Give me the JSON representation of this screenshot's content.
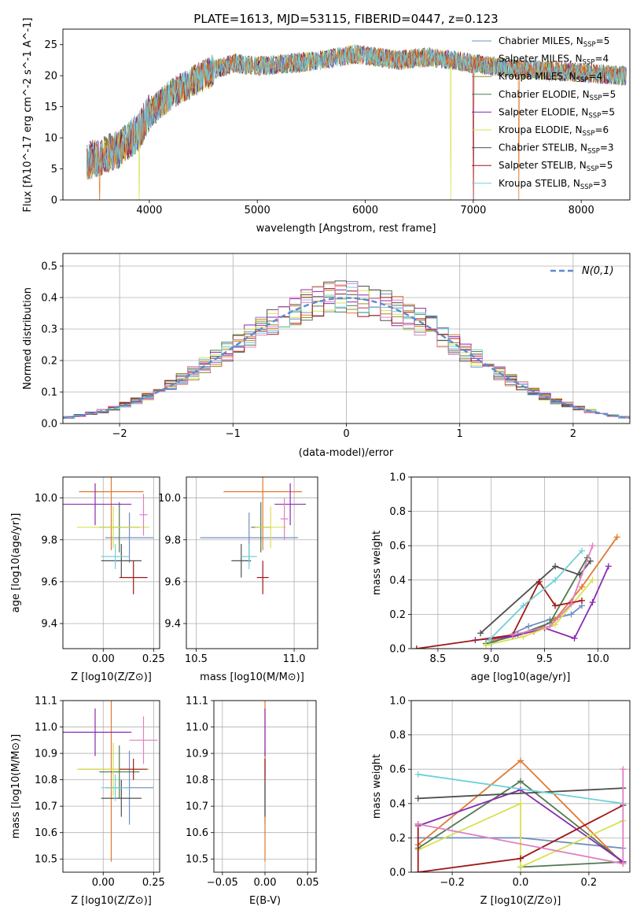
{
  "figure": {
    "title": "PLATE=1613, MJD=53115, FIBERID=0447, z=0.123"
  },
  "colors": {
    "series": [
      "#6f8fc0",
      "#e07a30",
      "#9a8a2a",
      "#4f7a4f",
      "#8a2ab0",
      "#d8e050",
      "#505050",
      "#a01818",
      "#70d0d8"
    ],
    "pink": "#e080c0",
    "lightgreen": "#90d070",
    "grid": "#b0b0b0",
    "gaussian": "#5b8bd0"
  },
  "chart_data": [
    {
      "id": "spectrum",
      "type": "line",
      "title": "PLATE=1613, MJD=53115, FIBERID=0447, z=0.123",
      "xlabel": "wavelength [Angstrom, rest frame]",
      "ylabel": "Flux [fλ10^-17 erg cm^-2 s^-1 A^-1]",
      "xlim": [
        3200,
        8450
      ],
      "ylim": [
        0,
        27.5
      ],
      "xticks": [
        4000,
        5000,
        6000,
        7000,
        8000
      ],
      "yticks": [
        0,
        5,
        10,
        15,
        20,
        25
      ],
      "grid": false,
      "legend_position": "right",
      "series": [
        {
          "name": "Chabrier MILES, N_SSP=5",
          "label_main": "Chabrier MILES, N",
          "label_sub": "SSP",
          "label_tail": "=5"
        },
        {
          "name": "Salpeter MILES, N_SSP=4",
          "label_main": "Salpeter MILES, N",
          "label_sub": "SSP",
          "label_tail": "=4"
        },
        {
          "name": "Kroupa MILES, N_SSP=4",
          "label_main": "Kroupa MILES, N",
          "label_sub": "SSP",
          "label_tail": "=4"
        },
        {
          "name": "Chabrier ELODIE, N_SSP=5",
          "label_main": "Chabrier ELODIE, N",
          "label_sub": "SSP",
          "label_tail": "=5"
        },
        {
          "name": "Salpeter ELODIE, N_SSP=5",
          "label_main": "Salpeter ELODIE, N",
          "label_sub": "SSP",
          "label_tail": "=5"
        },
        {
          "name": "Kroupa ELODIE, N_SSP=6",
          "label_main": "Kroupa ELODIE, N",
          "label_sub": "SSP",
          "label_tail": "=6"
        },
        {
          "name": "Chabrier STELIB, N_SSP=3",
          "label_main": "Chabrier STELIB, N",
          "label_sub": "SSP",
          "label_tail": "=3"
        },
        {
          "name": "Salpeter STELIB, N_SSP=5",
          "label_main": "Salpeter STELIB, N",
          "label_sub": "SSP",
          "label_tail": "=5"
        },
        {
          "name": "Kroupa STELIB, N_SSP=3",
          "label_main": "Kroupa STELIB, N",
          "label_sub": "SSP",
          "label_tail": "=3"
        }
      ],
      "continuum": {
        "x": [
          3400,
          3550,
          3700,
          3900,
          4000,
          4200,
          4300,
          4400,
          4600,
          4800,
          5000,
          5300,
          5600,
          5900,
          6100,
          6300,
          6600,
          6800,
          7000,
          7200,
          7500,
          8000,
          8400
        ],
        "y": [
          6,
          7,
          8,
          11,
          14,
          17,
          18,
          19,
          21,
          22,
          21.5,
          22,
          22.5,
          23.5,
          23,
          22.5,
          23,
          22.5,
          22,
          21.5,
          21,
          20.5,
          20
        ]
      }
    },
    {
      "id": "residual_hist",
      "type": "histogram",
      "xlabel": "(data-model)/error",
      "ylabel": "Normed distribution",
      "xlim": [
        -2.5,
        2.5
      ],
      "ylim": [
        0,
        0.54
      ],
      "xticks": [
        -2,
        -1,
        0,
        1,
        2
      ],
      "yticks": [
        0.0,
        0.1,
        0.2,
        0.3,
        0.4,
        0.5
      ],
      "grid": true,
      "legend_position": "top-right",
      "legend": "N(0,1)",
      "bin_width": 0.1
    },
    {
      "id": "age_vs_Z",
      "type": "scatter",
      "xlabel": "Z [log10(Z/Z⊙)]",
      "ylabel": "age [log10(age/yr)]",
      "xlim": [
        -0.2,
        0.28
      ],
      "ylim": [
        9.28,
        10.1
      ],
      "xticks": [
        0.0,
        0.25
      ],
      "yticks": [
        9.4,
        9.6,
        9.8,
        10.0
      ],
      "grid": true,
      "points": [
        {
          "series": 0,
          "x": 0.13,
          "y": 9.81,
          "xerr": 0.12,
          "yerr": 0.12
        },
        {
          "series": 1,
          "x": 0.04,
          "y": 10.03,
          "xerr": 0.16,
          "yerr": 0.28
        },
        {
          "series": 3,
          "x": 0.08,
          "y": 9.86,
          "xerr": 0.1,
          "yerr": 0.12
        },
        {
          "series": 4,
          "x": -0.04,
          "y": 9.97,
          "xerr": 0.18,
          "yerr": 0.1
        },
        {
          "series": 5,
          "x": 0.05,
          "y": 9.86,
          "xerr": 0.18,
          "yerr": 0.1
        },
        {
          "series": 6,
          "x": 0.09,
          "y": 9.7,
          "xerr": 0.1,
          "yerr": 0.08
        },
        {
          "series": 7,
          "x": 0.15,
          "y": 9.62,
          "xerr": 0.07,
          "yerr": 0.08
        },
        {
          "series": 8,
          "x": 0.06,
          "y": 9.72,
          "xerr": 0.07,
          "yerr": 0.06
        },
        {
          "color": "pink",
          "x": 0.2,
          "y": 9.92,
          "xerr": 0.02,
          "yerr": 0.1
        }
      ]
    },
    {
      "id": "age_vs_mass",
      "type": "scatter",
      "xlabel": "mass [log10(M/M⊙)]",
      "ylabel": "",
      "xlim": [
        10.45,
        11.12
      ],
      "ylim": [
        9.28,
        10.1
      ],
      "xticks": [
        10.5,
        11.0
      ],
      "yticks": [
        9.4,
        9.6,
        9.8,
        10.0
      ],
      "grid": true,
      "points": [
        {
          "series": 0,
          "x": 10.77,
          "y": 9.81,
          "xerr": 0.25,
          "yerr": 0.12
        },
        {
          "series": 1,
          "x": 10.84,
          "y": 10.03,
          "xerr": 0.2,
          "yerr": 0.28
        },
        {
          "series": 3,
          "x": 10.83,
          "y": 9.86,
          "xerr": 0.05,
          "yerr": 0.12
        },
        {
          "series": 4,
          "x": 10.98,
          "y": 9.97,
          "xerr": 0.08,
          "yerr": 0.1
        },
        {
          "series": 5,
          "x": 10.88,
          "y": 9.86,
          "xerr": 0.08,
          "yerr": 0.1
        },
        {
          "series": 6,
          "x": 10.73,
          "y": 9.7,
          "xerr": 0.05,
          "yerr": 0.08
        },
        {
          "series": 7,
          "x": 10.84,
          "y": 9.62,
          "xerr": 0.03,
          "yerr": 0.08
        },
        {
          "series": 8,
          "x": 10.77,
          "y": 9.72,
          "xerr": 0.04,
          "yerr": 0.06
        },
        {
          "color": "pink",
          "x": 10.95,
          "y": 9.9,
          "xerr": 0.02,
          "yerr": 0.1
        }
      ]
    },
    {
      "id": "weight_vs_age",
      "type": "line",
      "xlabel": "age [log10(age/yr)]",
      "ylabel": "mass weight",
      "xlim": [
        8.25,
        10.3
      ],
      "ylim": [
        0,
        1
      ],
      "xticks": [
        8.5,
        9.0,
        9.5,
        10.0
      ],
      "yticks": [
        0.0,
        0.2,
        0.4,
        0.6,
        0.8,
        1.0
      ],
      "grid": true,
      "series": [
        {
          "color_index": 0,
          "x": [
            9.0,
            9.35,
            9.55,
            9.75,
            9.85
          ],
          "y": [
            0.03,
            0.13,
            0.17,
            0.2,
            0.25
          ]
        },
        {
          "color_index": 1,
          "x": [
            9.0,
            9.4,
            9.6,
            9.85,
            10.18
          ],
          "y": [
            0.05,
            0.1,
            0.17,
            0.36,
            0.65
          ]
        },
        {
          "color_index": 3,
          "x": [
            8.95,
            9.25,
            9.55,
            9.9
          ],
          "y": [
            0.03,
            0.08,
            0.15,
            0.53
          ]
        },
        {
          "color_index": 4,
          "x": [
            8.85,
            9.2,
            9.5,
            9.78,
            9.95,
            10.1
          ],
          "y": [
            0.05,
            0.07,
            0.12,
            0.06,
            0.27,
            0.48
          ]
        },
        {
          "color_index": 5,
          "x": [
            8.95,
            9.3,
            9.6,
            9.95
          ],
          "y": [
            0.02,
            0.07,
            0.14,
            0.4
          ]
        },
        {
          "color_index": 6,
          "x": [
            8.9,
            9.6,
            9.83,
            9.93
          ],
          "y": [
            0.09,
            0.48,
            0.43,
            0.51
          ]
        },
        {
          "color_index": 7,
          "x": [
            8.3,
            9.2,
            9.45,
            9.6,
            9.85
          ],
          "y": [
            0.0,
            0.08,
            0.39,
            0.25,
            0.28
          ]
        },
        {
          "color_index": 8,
          "x": [
            8.98,
            9.3,
            9.6,
            9.85
          ],
          "y": [
            0.05,
            0.25,
            0.4,
            0.57
          ]
        },
        {
          "color": "pink",
          "x": [
            9.2,
            9.55,
            9.75,
            9.95
          ],
          "y": [
            0.08,
            0.13,
            0.26,
            0.6
          ]
        }
      ]
    },
    {
      "id": "mass_vs_Z",
      "type": "scatter",
      "xlabel": "Z [log10(Z/Z⊙)]",
      "ylabel": "mass [log10(M/M⊙)]",
      "xlim": [
        -0.2,
        0.28
      ],
      "ylim": [
        10.45,
        11.1
      ],
      "xticks": [
        0.0,
        0.25
      ],
      "yticks": [
        10.5,
        10.6,
        10.7,
        10.8,
        10.9,
        11.0,
        11.1
      ],
      "grid": true,
      "points": [
        {
          "series": 0,
          "x": 0.13,
          "y": 10.77,
          "xerr": 0.12,
          "yerr": 0.14
        },
        {
          "series": 1,
          "x": 0.04,
          "y": 10.84,
          "xerr": 0.16,
          "yerr": 0.35
        },
        {
          "series": 3,
          "x": 0.08,
          "y": 10.83,
          "xerr": 0.1,
          "yerr": 0.1
        },
        {
          "series": 4,
          "x": -0.04,
          "y": 10.98,
          "xerr": 0.18,
          "yerr": 0.09
        },
        {
          "series": 5,
          "x": 0.05,
          "y": 10.84,
          "xerr": 0.18,
          "yerr": 0.1
        },
        {
          "series": 6,
          "x": 0.09,
          "y": 10.73,
          "xerr": 0.1,
          "yerr": 0.07
        },
        {
          "series": 7,
          "x": 0.15,
          "y": 10.84,
          "xerr": 0.07,
          "yerr": 0.04
        },
        {
          "series": 8,
          "x": 0.06,
          "y": 10.77,
          "xerr": 0.07,
          "yerr": 0.05
        },
        {
          "color": "pink",
          "x": 0.2,
          "y": 10.95,
          "xerr": 0.07,
          "yerr": 0.09
        }
      ]
    },
    {
      "id": "mass_vs_ebv",
      "type": "scatter",
      "xlabel": "E(B-V)",
      "ylabel": "",
      "xlim": [
        -0.06,
        0.06
      ],
      "ylim": [
        10.45,
        11.1
      ],
      "xticks": [
        -0.05,
        0.0,
        0.05
      ],
      "yticks": [
        10.5,
        10.6,
        10.7,
        10.8,
        10.9,
        11.0,
        11.1
      ],
      "grid": true,
      "points": [
        {
          "series": 0,
          "x": 0.0,
          "y": 10.77,
          "xerr": 0.0,
          "yerr": 0.14
        },
        {
          "series": 1,
          "x": 0.0,
          "y": 10.84,
          "xerr": 0.0,
          "yerr": 0.35
        },
        {
          "series": 4,
          "x": 0.0,
          "y": 10.98,
          "xerr": 0.0,
          "yerr": 0.09
        },
        {
          "series": 6,
          "x": 0.0,
          "y": 10.73,
          "xerr": 0.0,
          "yerr": 0.07
        },
        {
          "series": 7,
          "x": 0.0,
          "y": 10.84,
          "xerr": 0.0,
          "yerr": 0.04
        }
      ]
    },
    {
      "id": "weight_vs_Z",
      "type": "line",
      "xlabel": "Z [log10(Z/Z⊙)]",
      "ylabel": "mass weight",
      "xlim": [
        -0.32,
        0.32
      ],
      "ylim": [
        0,
        1
      ],
      "xticks": [
        -0.2,
        0.0,
        0.2
      ],
      "yticks": [
        0.0,
        0.2,
        0.4,
        0.6,
        0.8,
        1.0
      ],
      "grid": true,
      "series": [
        {
          "color_index": 0,
          "x": [
            -0.3,
            0.0,
            0.3
          ],
          "y": [
            0.2,
            0.2,
            0.14
          ]
        },
        {
          "color_index": 1,
          "x": [
            -0.3,
            0.0,
            0.3
          ],
          "y": [
            0.16,
            0.65,
            0.05
          ]
        },
        {
          "color_index": 3,
          "x": [
            -0.3,
            0.0,
            0.3,
            0.0
          ],
          "y": [
            0.14,
            0.53,
            0.06,
            0.03
          ]
        },
        {
          "color_index": 4,
          "x": [
            -0.3,
            0.0,
            0.3
          ],
          "y": [
            0.27,
            0.48,
            0.06
          ]
        },
        {
          "color_index": 5,
          "x": [
            -0.3,
            0.0,
            0.0,
            0.3
          ],
          "y": [
            0.13,
            0.4,
            0.03,
            0.3
          ]
        },
        {
          "color_index": 6,
          "x": [
            -0.3,
            0.3
          ],
          "y": [
            0.43,
            0.49
          ]
        },
        {
          "color_index": 7,
          "x": [
            -0.3,
            -0.3,
            0.0,
            0.3
          ],
          "y": [
            0.28,
            0.0,
            0.08,
            0.39
          ]
        },
        {
          "color_index": 8,
          "x": [
            -0.3,
            0.3
          ],
          "y": [
            0.57,
            0.4
          ]
        },
        {
          "color": "pink",
          "x": [
            -0.3,
            0.3,
            0.3
          ],
          "y": [
            0.28,
            0.05,
            0.6
          ]
        }
      ]
    }
  ]
}
